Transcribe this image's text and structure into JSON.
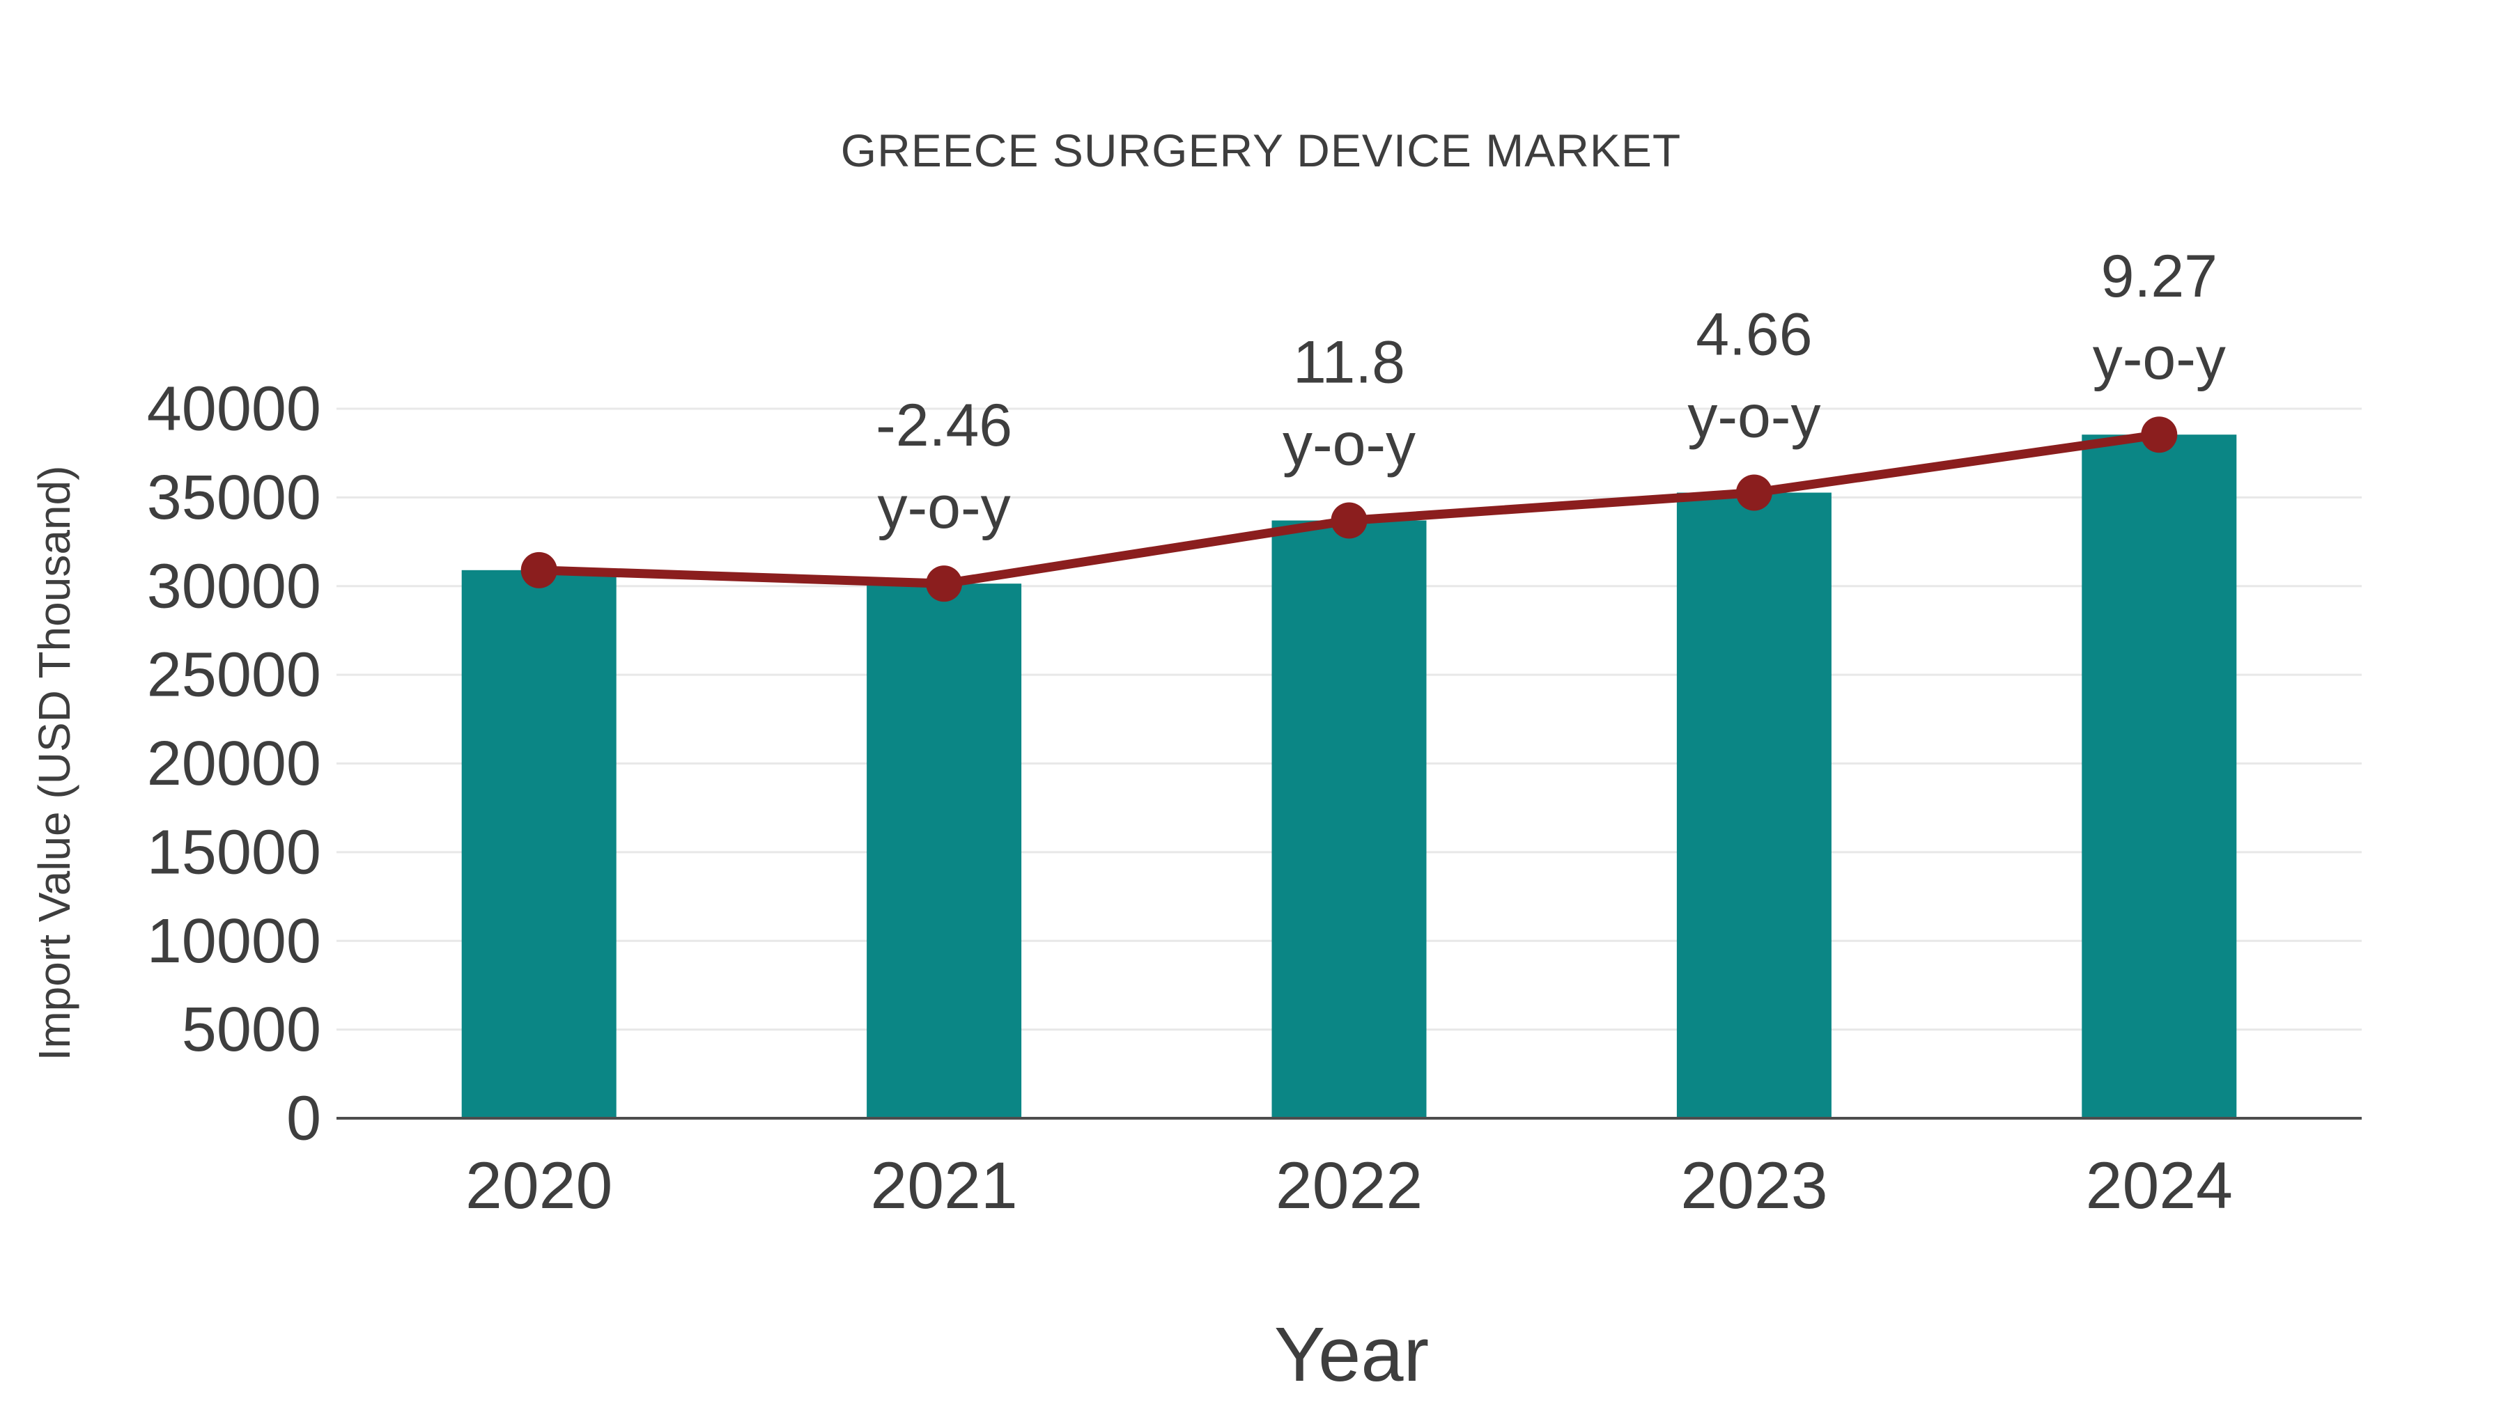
{
  "chart_data": {
    "type": "bar",
    "title": "GREECE SURGERY DEVICE MARKET",
    "xlabel": "Year",
    "ylabel": "Import Value (USD Thousand)",
    "categories": [
      "2020",
      "2021",
      "2022",
      "2023",
      "2024"
    ],
    "series": [
      {
        "name": "Import Value (USD Thousand)",
        "type": "bar",
        "color": "#0b8685",
        "values": [
          30900,
          30140,
          33700,
          35270,
          38540
        ]
      },
      {
        "name": "Import Value trend",
        "type": "line",
        "color": "#8b1e1e",
        "values": [
          30900,
          30140,
          33700,
          35270,
          38540
        ]
      }
    ],
    "annotations": [
      {
        "category": "2021",
        "value_label": "-2.46",
        "sub_label": "y-o-y"
      },
      {
        "category": "2022",
        "value_label": "11.8",
        "sub_label": "y-o-y"
      },
      {
        "category": "2023",
        "value_label": "4.66",
        "sub_label": "y-o-y"
      },
      {
        "category": "2024",
        "value_label": "9.27",
        "sub_label": "y-o-y"
      }
    ],
    "ylim": [
      0,
      40000
    ],
    "yticks": [
      0,
      5000,
      10000,
      15000,
      20000,
      25000,
      30000,
      35000,
      40000
    ],
    "grid": true,
    "legend_position": "none",
    "colors": {
      "bar": "#0b8685",
      "line": "#8b1e1e",
      "marker": "#8b1e1e",
      "text": "#3e3e3e",
      "grid": "#e8e8e8",
      "axis": "#4d4d4d",
      "background": "#ffffff"
    }
  }
}
